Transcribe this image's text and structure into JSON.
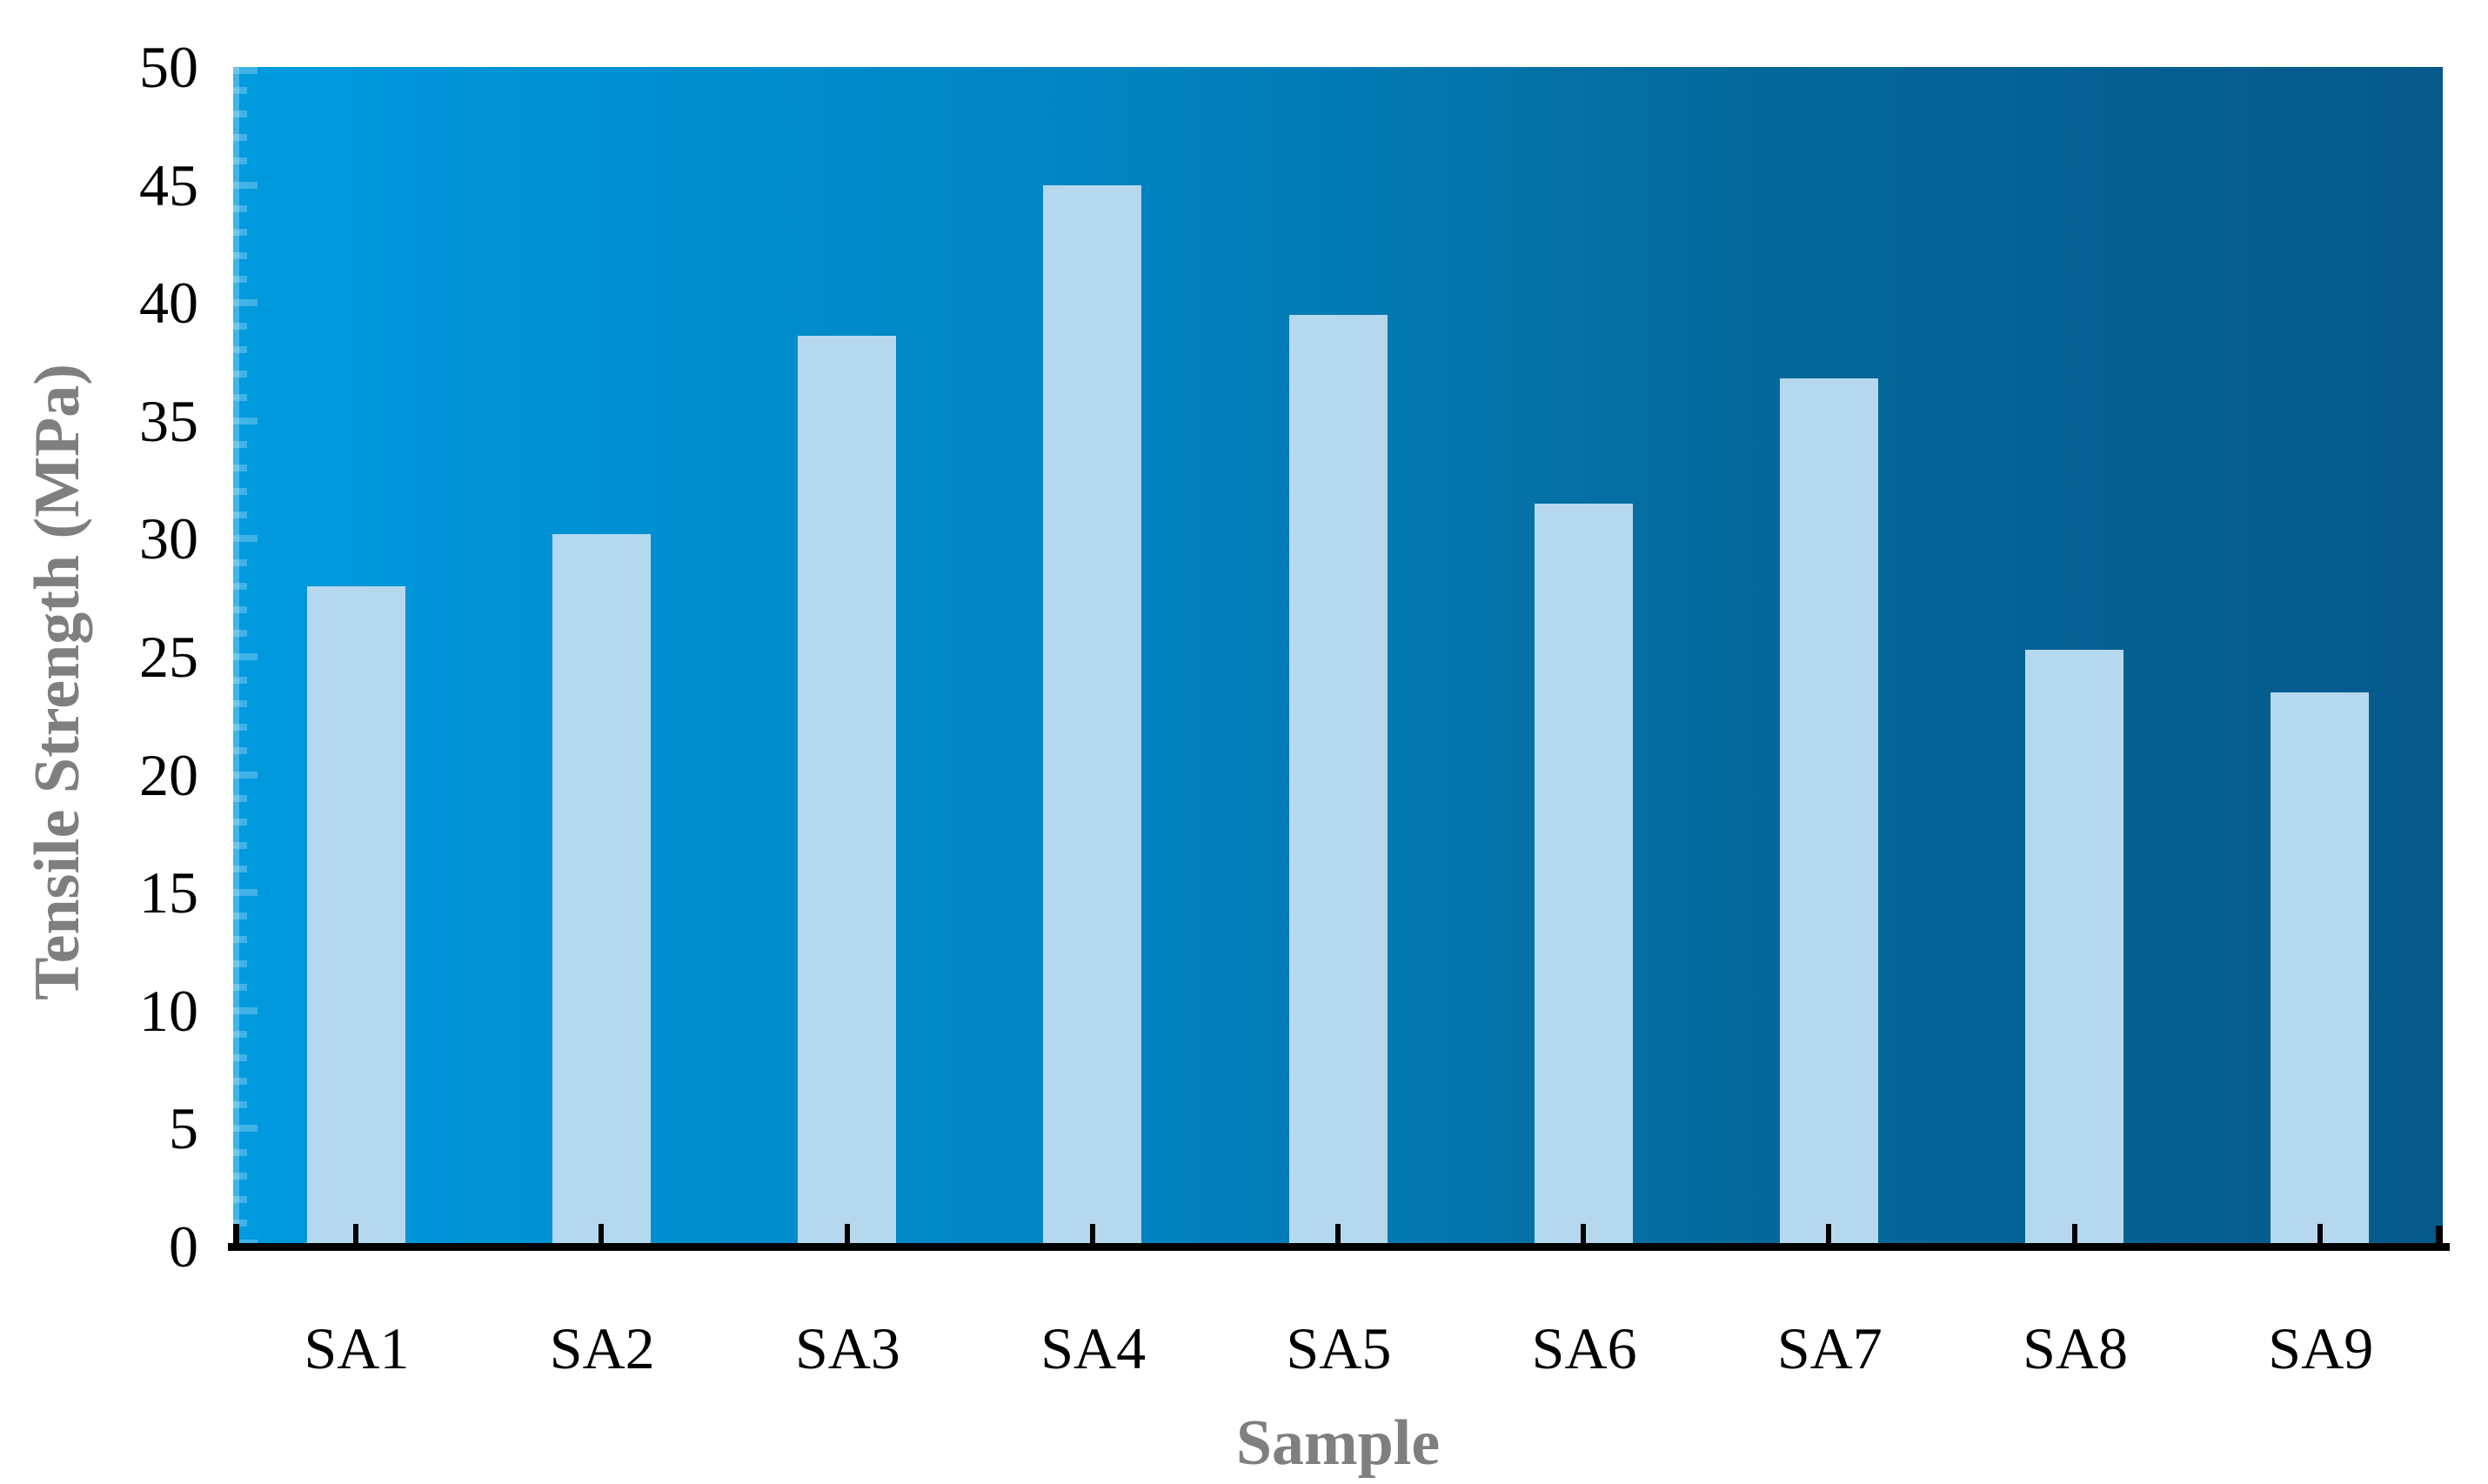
{
  "chart_data": {
    "type": "bar",
    "title": "",
    "xlabel": "Sample",
    "ylabel": "Tensile Strength (MPa)",
    "categories": [
      "SA1",
      "SA2",
      "SA3",
      "SA4",
      "SA5",
      "SA6",
      "SA7",
      "SA8",
      "SA9"
    ],
    "values": [
      28.0,
      30.2,
      38.6,
      45.0,
      39.5,
      31.5,
      36.8,
      25.3,
      23.5
    ],
    "ylim": [
      0,
      50
    ],
    "yticks": [
      0,
      5,
      10,
      15,
      20,
      25,
      30,
      35,
      40,
      45,
      50
    ],
    "y_minor_step": 1,
    "y_major_step": 5,
    "grid": false,
    "legend_position": "none",
    "colors": {
      "bar_fill": "#b5d8ee",
      "plot_bg_left": "#009adf",
      "plot_bg_mid1": "#0182bf",
      "plot_bg_mid2": "#05699c",
      "plot_bg_right": "#05598a",
      "axis_line": "#000000",
      "category_tick": "#000000",
      "inner_tick": "rgba(255,255,255,0.25)",
      "tick_label_color": "#000000",
      "axis_title_color": "#7f7f7f"
    }
  }
}
